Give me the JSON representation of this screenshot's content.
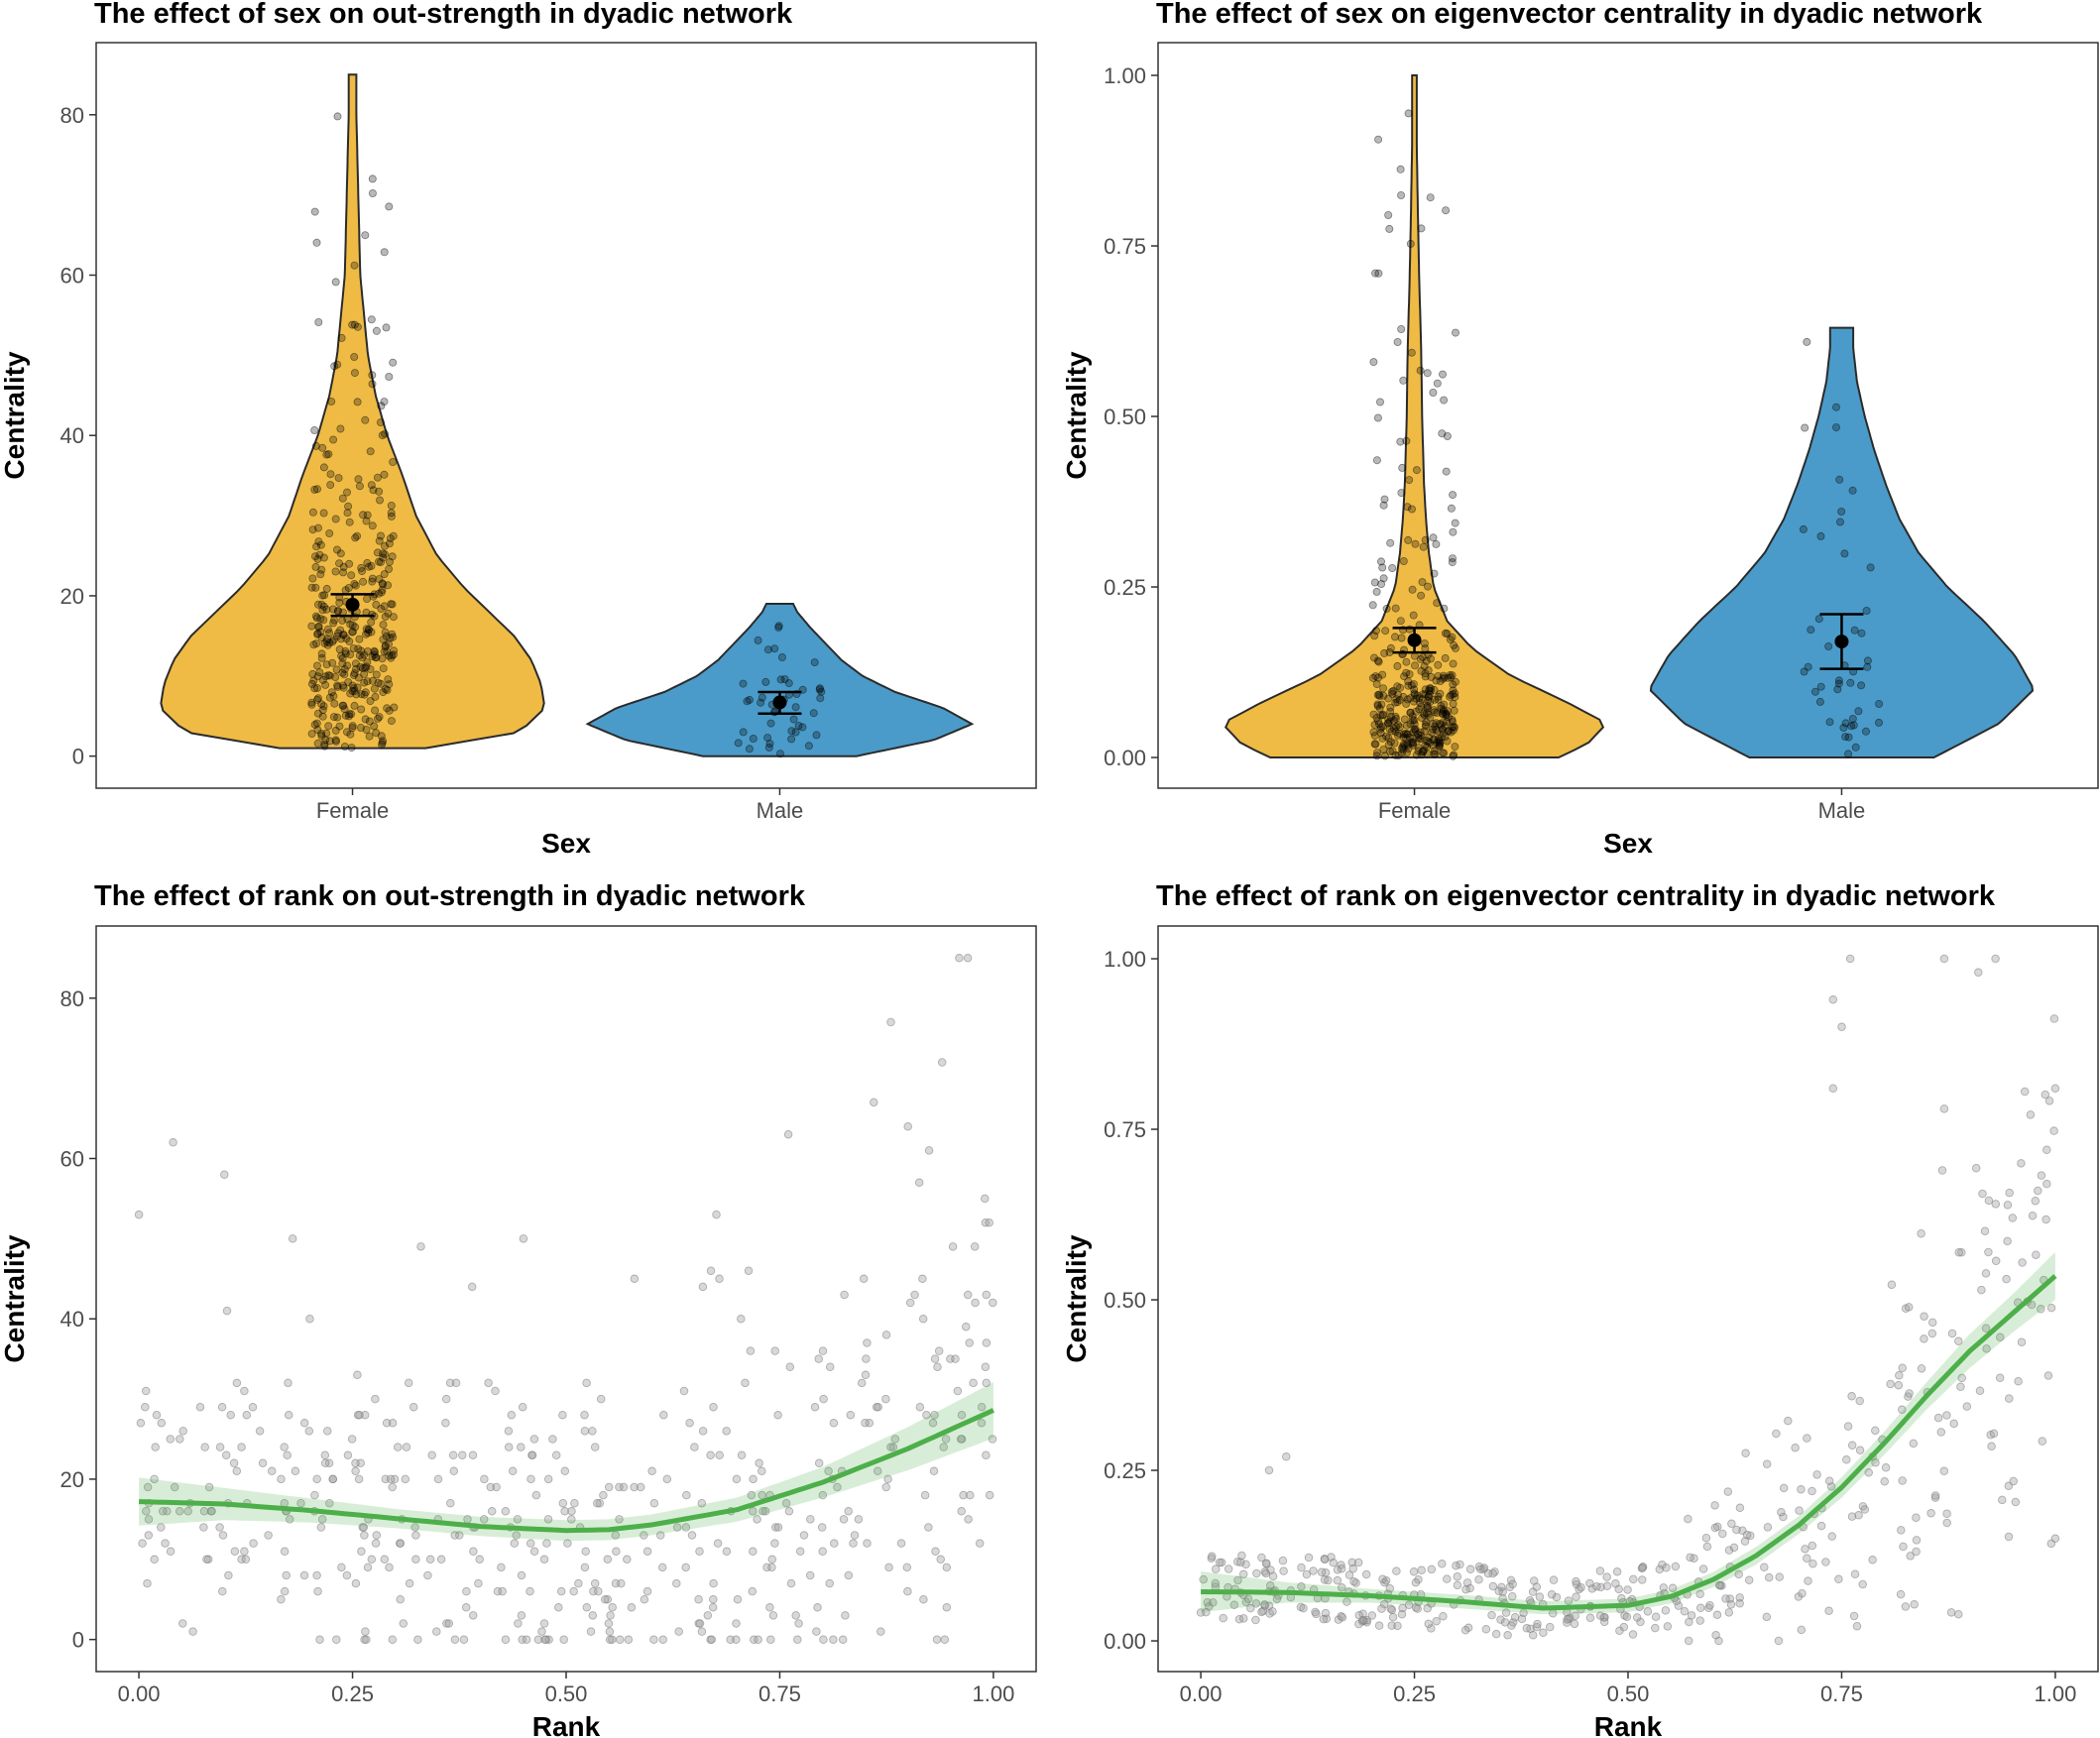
{
  "chart_data": [
    {
      "id": "sex_strength",
      "type": "violin",
      "title": "The effect of sex on out-strength in dyadic network",
      "xlabel": "Sex",
      "ylabel": "Centrality",
      "categories": [
        "Female",
        "Male"
      ],
      "ylim": [
        -4,
        89
      ],
      "yticks": [
        0,
        20,
        40,
        60,
        80
      ],
      "ytick_labels": [
        "0",
        "20",
        "40",
        "60",
        "80"
      ],
      "groups": [
        {
          "name": "Female",
          "color": "#EFBB45",
          "range": [
            1,
            85
          ],
          "mean": 18.9,
          "ci": [
            17.5,
            20.2
          ],
          "density": [
            [
              1,
              0.38
            ],
            [
              3,
              0.87
            ],
            [
              6,
              1
            ],
            [
              9,
              0.98
            ],
            [
              12,
              0.93
            ],
            [
              15,
              0.84
            ],
            [
              18,
              0.71
            ],
            [
              21,
              0.58
            ],
            [
              25,
              0.44
            ],
            [
              30,
              0.33
            ],
            [
              35,
              0.26
            ],
            [
              40,
              0.18
            ],
            [
              45,
              0.12
            ],
            [
              50,
              0.08
            ],
            [
              55,
              0.06
            ],
            [
              60,
              0.04
            ],
            [
              65,
              0.035
            ],
            [
              70,
              0.03
            ],
            [
              75,
              0.025
            ],
            [
              80,
              0.02
            ],
            [
              85,
              0.02
            ]
          ]
        },
        {
          "name": "Male",
          "color": "#4A9BC9",
          "range": [
            0,
            19
          ],
          "mean": 6.7,
          "ci": [
            5.3,
            8.0
          ],
          "density": [
            [
              0,
              0.4
            ],
            [
              2,
              0.8
            ],
            [
              4,
              1
            ],
            [
              6,
              0.85
            ],
            [
              8,
              0.6
            ],
            [
              10,
              0.43
            ],
            [
              12,
              0.32
            ],
            [
              14,
              0.24
            ],
            [
              16,
              0.16
            ],
            [
              18,
              0.09
            ],
            [
              19,
              0.07
            ]
          ]
        }
      ]
    },
    {
      "id": "sex_eigen",
      "type": "violin",
      "title": "The effect of sex on eigenvector centrality in dyadic network",
      "xlabel": "Sex",
      "ylabel": "Centrality",
      "categories": [
        "Female",
        "Male"
      ],
      "ylim": [
        -0.045,
        1.048
      ],
      "yticks": [
        0,
        0.25,
        0.5,
        0.75,
        1
      ],
      "ytick_labels": [
        "0.00",
        "0.25",
        "0.50",
        "0.75",
        "1.00"
      ],
      "groups": [
        {
          "name": "Female",
          "color": "#EFBB45",
          "range": [
            0,
            1
          ],
          "mean": 0.172,
          "ci": [
            0.154,
            0.19
          ],
          "density": [
            [
              0,
              0.75
            ],
            [
              0.02,
              0.9
            ],
            [
              0.05,
              1
            ],
            [
              0.08,
              0.8
            ],
            [
              0.12,
              0.5
            ],
            [
              0.16,
              0.3
            ],
            [
              0.2,
              0.17
            ],
            [
              0.25,
              0.1
            ],
            [
              0.3,
              0.075
            ],
            [
              0.35,
              0.06
            ],
            [
              0.4,
              0.05
            ],
            [
              0.5,
              0.04
            ],
            [
              0.6,
              0.035
            ],
            [
              0.7,
              0.025
            ],
            [
              0.8,
              0.018
            ],
            [
              0.9,
              0.012
            ],
            [
              1,
              0.012
            ]
          ]
        },
        {
          "name": "Male",
          "color": "#4A9BC9",
          "range": [
            0,
            0.63
          ],
          "mean": 0.17,
          "ci": [
            0.13,
            0.21
          ],
          "density": [
            [
              0,
              0.48
            ],
            [
              0.05,
              0.82
            ],
            [
              0.1,
              1
            ],
            [
              0.15,
              0.9
            ],
            [
              0.2,
              0.74
            ],
            [
              0.25,
              0.55
            ],
            [
              0.3,
              0.4
            ],
            [
              0.35,
              0.3
            ],
            [
              0.4,
              0.23
            ],
            [
              0.45,
              0.17
            ],
            [
              0.5,
              0.12
            ],
            [
              0.55,
              0.08
            ],
            [
              0.6,
              0.06
            ],
            [
              0.63,
              0.06
            ]
          ]
        }
      ]
    },
    {
      "id": "rank_strength",
      "type": "scatter",
      "title": "The effect of rank on out-strength in dyadic network",
      "xlabel": "Rank",
      "ylabel": "Centrality",
      "xlim": [
        -0.05,
        1.05
      ],
      "ylim": [
        -4,
        89
      ],
      "xticks": [
        0,
        0.25,
        0.5,
        0.75,
        1
      ],
      "xtick_labels": [
        "0.00",
        "0.25",
        "0.50",
        "0.75",
        "1.00"
      ],
      "yticks": [
        0,
        20,
        40,
        60,
        80
      ],
      "ytick_labels": [
        "0",
        "20",
        "40",
        "60",
        "80"
      ],
      "smooth": {
        "color": "#4DAF4A",
        "x": [
          0,
          0.1,
          0.2,
          0.3,
          0.4,
          0.5,
          0.55,
          0.6,
          0.7,
          0.8,
          0.9,
          1
        ],
        "y": [
          17.2,
          16.9,
          16.1,
          15.1,
          14.1,
          13.6,
          13.7,
          14.3,
          16.2,
          19.6,
          23.8,
          28.6
        ],
        "lower": [
          14.2,
          14.9,
          14.6,
          13.9,
          12.9,
          12.3,
          12.4,
          13.0,
          14.7,
          17.7,
          21.1,
          25.1
        ],
        "upper": [
          20.2,
          18.9,
          17.6,
          16.3,
          15.3,
          14.9,
          15.0,
          15.6,
          17.7,
          21.5,
          26.5,
          32.1
        ]
      },
      "highlights": [
        [
          0.04,
          62
        ],
        [
          0.1,
          58
        ],
        [
          0.86,
          67
        ],
        [
          0.88,
          77
        ],
        [
          0.9,
          64
        ],
        [
          0.94,
          72
        ],
        [
          0.96,
          85
        ],
        [
          0.97,
          85
        ],
        [
          0.99,
          55
        ],
        [
          0.76,
          63
        ],
        [
          0.0,
          53
        ],
        [
          0.58,
          45
        ],
        [
          0.45,
          50
        ],
        [
          0.33,
          49
        ],
        [
          0.18,
          50
        ],
        [
          0.2,
          40
        ],
        [
          0.39,
          44
        ],
        [
          0.66,
          44
        ]
      ],
      "series": []
    },
    {
      "id": "rank_eigen",
      "type": "scatter",
      "title": "The effect of rank on eigenvector centrality in dyadic network",
      "xlabel": "Rank",
      "ylabel": "Centrality",
      "xlim": [
        -0.05,
        1.05
      ],
      "ylim": [
        -0.045,
        1.048
      ],
      "xticks": [
        0,
        0.25,
        0.5,
        0.75,
        1
      ],
      "xtick_labels": [
        "0.00",
        "0.25",
        "0.50",
        "0.75",
        "1.00"
      ],
      "yticks": [
        0,
        0.25,
        0.5,
        0.75,
        1
      ],
      "ytick_labels": [
        "0.00",
        "0.25",
        "0.50",
        "0.75",
        "1.00"
      ],
      "smooth": {
        "color": "#4DAF4A",
        "x": [
          0,
          0.1,
          0.2,
          0.3,
          0.4,
          0.5,
          0.55,
          0.6,
          0.65,
          0.7,
          0.75,
          0.8,
          0.85,
          0.9,
          0.95,
          1
        ],
        "y": [
          0.072,
          0.071,
          0.066,
          0.058,
          0.048,
          0.052,
          0.065,
          0.09,
          0.125,
          0.17,
          0.225,
          0.29,
          0.36,
          0.425,
          0.48,
          0.535
        ],
        "lower": [
          0.042,
          0.056,
          0.056,
          0.048,
          0.039,
          0.042,
          0.055,
          0.079,
          0.112,
          0.157,
          0.21,
          0.273,
          0.34,
          0.4,
          0.452,
          0.5
        ],
        "upper": [
          0.102,
          0.086,
          0.076,
          0.068,
          0.058,
          0.062,
          0.075,
          0.101,
          0.138,
          0.183,
          0.24,
          0.307,
          0.38,
          0.45,
          0.508,
          0.57
        ]
      },
      "highlights": [
        [
          0.74,
          0.94
        ],
        [
          0.75,
          0.9
        ],
        [
          0.76,
          1.0
        ],
        [
          0.87,
          1.0
        ],
        [
          0.93,
          1.0
        ],
        [
          0.91,
          0.98
        ],
        [
          0.74,
          0.81
        ],
        [
          0.87,
          0.78
        ],
        [
          1.0,
          0.81
        ],
        [
          0.99,
          0.72
        ],
        [
          0.96,
          0.7
        ],
        [
          0.95,
          0.62
        ],
        [
          0.99,
          0.67
        ],
        [
          1.0,
          0.15
        ],
        [
          0.1,
          0.27
        ],
        [
          0.08,
          0.25
        ]
      ],
      "series": []
    }
  ]
}
